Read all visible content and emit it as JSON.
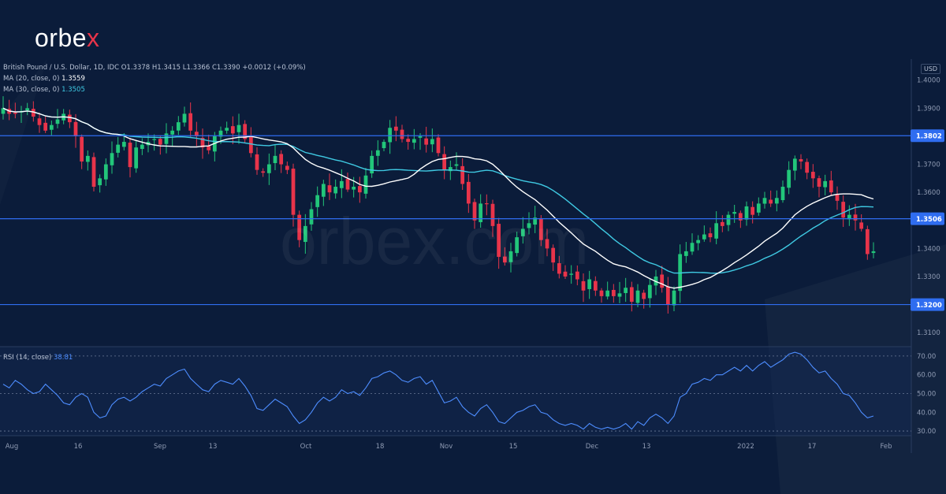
{
  "brand": {
    "logo_text": "orbex",
    "logo_main": "orbe",
    "logo_accent": "x",
    "watermark": "orbex.com"
  },
  "colors": {
    "background": "#0b1c3a",
    "bull": "#22c67a",
    "bear": "#e8344a",
    "ma20": "#ffffff",
    "ma30": "#3fc9e2",
    "rsi": "#4d8dff",
    "level": "#2f6df0",
    "level_label_bg": "#2f6df0"
  },
  "legend": {
    "symbol": "British Pound / U.S. Dollar, 1D, IDC",
    "o_label": "O",
    "o_value": "1.3378",
    "h_label": "H",
    "h_value": "1.3415",
    "l_label": "L",
    "l_value": "1.3366",
    "c_label": "C",
    "c_value": "1.3390",
    "change": "+0.0012 (+0.09%)",
    "ma20_label": "MA (20, close, 0)",
    "ma20_value": "1.3559",
    "ma30_label": "MA (30, close, 0)",
    "ma30_value": "1.3505",
    "rsi_label": "RSI (14, close)",
    "rsi_value": "38.81",
    "currency": "USD"
  },
  "chart_data": [
    {
      "type": "candlestick",
      "title": "British Pound / U.S. Dollar, 1D, IDC",
      "x_tick_labels": [
        "Aug",
        "16",
        "Sep",
        "13",
        "Oct",
        "18",
        "Nov",
        "15",
        "Dec",
        "13",
        "2022",
        "17",
        "Feb"
      ],
      "y_tick_labels": [
        "1.4000",
        "1.3900",
        "1.3700",
        "1.3600",
        "1.3400",
        "1.3300",
        "1.3100"
      ],
      "ylim": [
        1.305,
        1.4075
      ],
      "horizontal_levels": [
        1.3802,
        1.3506,
        1.32
      ],
      "horizontal_level_labels": [
        "1.3802",
        "1.3506",
        "1.3200"
      ],
      "close": [
        1.39,
        1.388,
        1.388,
        1.389,
        1.39,
        1.387,
        1.384,
        1.382,
        1.384,
        1.386,
        1.388,
        1.385,
        1.38,
        1.371,
        1.373,
        1.362,
        1.365,
        1.37,
        1.374,
        1.377,
        1.378,
        1.369,
        1.376,
        1.377,
        1.378,
        1.379,
        1.377,
        1.381,
        1.382,
        1.385,
        1.388,
        1.382,
        1.38,
        1.376,
        1.375,
        1.38,
        1.382,
        1.383,
        1.381,
        1.384,
        1.379,
        1.374,
        1.368,
        1.367,
        1.37,
        1.373,
        1.37,
        1.368,
        1.352,
        1.343,
        1.348,
        1.354,
        1.359,
        1.363,
        1.36,
        1.362,
        1.364,
        1.361,
        1.362,
        1.36,
        1.366,
        1.373,
        1.375,
        1.378,
        1.383,
        1.382,
        1.379,
        1.378,
        1.379,
        1.38,
        1.377,
        1.379,
        1.374,
        1.368,
        1.369,
        1.37,
        1.363,
        1.356,
        1.35,
        1.356,
        1.356,
        1.348,
        1.337,
        1.335,
        1.339,
        1.344,
        1.347,
        1.349,
        1.351,
        1.343,
        1.34,
        1.335,
        1.331,
        1.33,
        1.331,
        1.329,
        1.325,
        1.329,
        1.325,
        1.323,
        1.325,
        1.323,
        1.324,
        1.326,
        1.321,
        1.325,
        1.322,
        1.327,
        1.33,
        1.326,
        1.32,
        1.325,
        1.338,
        1.339,
        1.342,
        1.343,
        1.345,
        1.344,
        1.349,
        1.348,
        1.352,
        1.353,
        1.35,
        1.355,
        1.352,
        1.356,
        1.358,
        1.356,
        1.358,
        1.362,
        1.368,
        1.372,
        1.371,
        1.367,
        1.365,
        1.362,
        1.364,
        1.36,
        1.357,
        1.351,
        1.352,
        1.35,
        1.347,
        1.338,
        1.339
      ],
      "ma20_visible_range": "full",
      "ma30_visible_range": "full"
    },
    {
      "type": "line",
      "title": "RSI (14, close)",
      "y_tick_labels": [
        "70.00",
        "60.00",
        "50.00",
        "40.00",
        "30.00"
      ],
      "ylim": [
        27.5,
        75
      ],
      "reference_lines": [
        70,
        50,
        30
      ],
      "values": [
        55,
        53,
        57,
        55,
        52,
        50,
        51,
        55,
        52,
        49,
        45,
        44,
        48,
        50,
        48,
        40,
        37,
        38,
        44,
        47,
        48,
        46,
        48,
        51,
        53,
        55,
        54,
        58,
        60,
        62,
        63,
        58,
        55,
        52,
        51,
        55,
        57,
        56,
        55,
        58,
        54,
        49,
        42,
        41,
        44,
        47,
        45,
        43,
        38,
        34,
        36,
        40,
        45,
        48,
        46,
        48,
        52,
        50,
        51,
        49,
        53,
        58,
        59,
        61,
        62,
        60,
        57,
        56,
        58,
        59,
        55,
        57,
        51,
        45,
        46,
        48,
        43,
        40,
        38,
        42,
        44,
        40,
        35,
        34,
        37,
        40,
        41,
        43,
        44,
        40,
        39,
        36,
        34,
        33,
        34,
        33,
        31,
        34,
        32,
        31,
        32,
        31,
        32,
        34,
        31,
        35,
        33,
        37,
        39,
        37,
        34,
        38,
        48,
        50,
        55,
        56,
        58,
        57,
        60,
        60,
        62,
        64,
        62,
        65,
        62,
        65,
        67,
        64,
        66,
        68,
        71,
        72,
        71,
        68,
        64,
        61,
        62,
        58,
        55,
        50,
        49,
        45,
        40,
        37,
        38
      ]
    }
  ]
}
